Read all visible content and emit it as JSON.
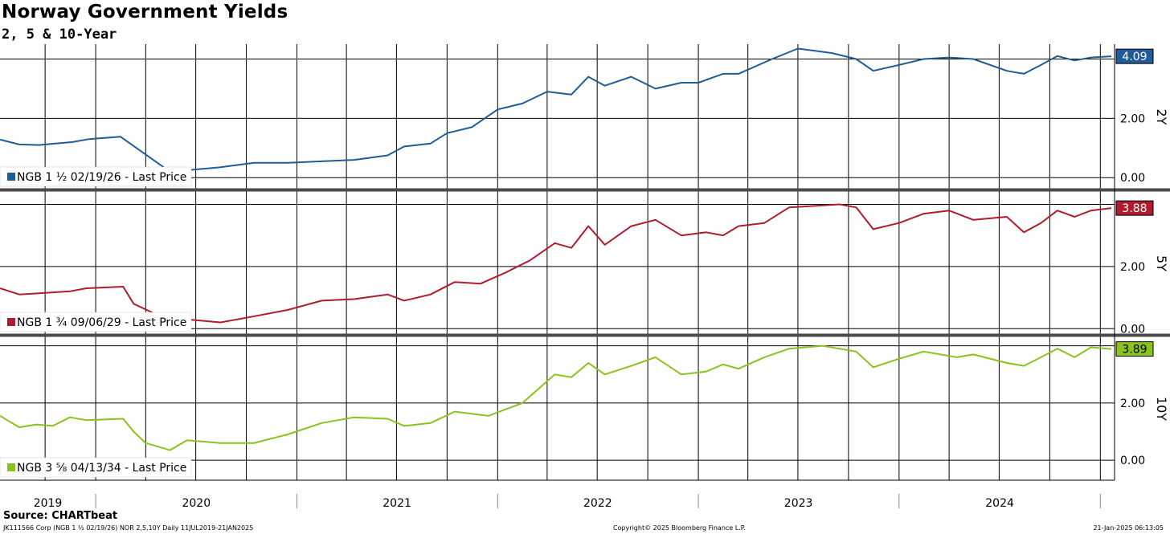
{
  "header": {
    "title": "Norway Government Yields",
    "subtitle": "2, 5 & 10-Year"
  },
  "footer": {
    "source": "Source: CHARTbeat",
    "left": "JK111566 Corp (NGB 1 ½ 02/19/26) NOR 2,5,10Y  Daily 11JUL2019-21JAN2025",
    "center": "Copyright© 2025 Bloomberg Finance L.P.",
    "right": "21-Jan-2025 06:13:05"
  },
  "chart_data": {
    "type": "line",
    "x_range": [
      "2019-07-11",
      "2025-01-21"
    ],
    "x_ticks": [
      "2019",
      "2020",
      "2021",
      "2022",
      "2023",
      "2024"
    ],
    "grid": true,
    "legend_position": "bottom-left of each panel",
    "panels": [
      {
        "axis_label": "2Y",
        "legend": "NGB 1 ½ 02/19/26 - Last Price",
        "last_value": "4.09",
        "color": "#1f5c99",
        "ylim": [
          -0.4,
          4.5
        ],
        "y_ticks": [
          "0.00",
          "2.00"
        ],
        "points": [
          [
            "2019-07-11",
            1.28
          ],
          [
            "2019-08-15",
            1.12
          ],
          [
            "2019-09-20",
            1.1
          ],
          [
            "2019-10-20",
            1.15
          ],
          [
            "2019-11-20",
            1.2
          ],
          [
            "2019-12-20",
            1.3
          ],
          [
            "2020-02-15",
            1.38
          ],
          [
            "2020-05-15",
            0.2
          ],
          [
            "2020-06-15",
            0.25
          ],
          [
            "2020-08-15",
            0.35
          ],
          [
            "2020-10-15",
            0.5
          ],
          [
            "2020-12-15",
            0.5
          ],
          [
            "2021-02-15",
            0.55
          ],
          [
            "2021-04-15",
            0.6
          ],
          [
            "2021-06-15",
            0.75
          ],
          [
            "2021-07-15",
            1.05
          ],
          [
            "2021-09-01",
            1.15
          ],
          [
            "2021-10-01",
            1.5
          ],
          [
            "2021-11-15",
            1.7
          ],
          [
            "2022-01-01",
            2.3
          ],
          [
            "2022-02-15",
            2.5
          ],
          [
            "2022-04-01",
            2.9
          ],
          [
            "2022-05-15",
            2.8
          ],
          [
            "2022-06-15",
            3.4
          ],
          [
            "2022-07-15",
            3.1
          ],
          [
            "2022-09-01",
            3.4
          ],
          [
            "2022-10-15",
            3.0
          ],
          [
            "2022-12-01",
            3.2
          ],
          [
            "2023-01-01",
            3.2
          ],
          [
            "2023-02-15",
            3.5
          ],
          [
            "2023-03-15",
            3.5
          ],
          [
            "2023-05-15",
            4.0
          ],
          [
            "2023-07-01",
            4.35
          ],
          [
            "2023-09-01",
            4.2
          ],
          [
            "2023-10-15",
            4.0
          ],
          [
            "2023-11-15",
            3.6
          ],
          [
            "2024-01-01",
            3.8
          ],
          [
            "2024-02-15",
            4.0
          ],
          [
            "2024-04-01",
            4.05
          ],
          [
            "2024-05-15",
            4.0
          ],
          [
            "2024-07-15",
            3.6
          ],
          [
            "2024-08-15",
            3.5
          ],
          [
            "2024-09-15",
            3.8
          ],
          [
            "2024-10-15",
            4.1
          ],
          [
            "2024-11-15",
            3.95
          ],
          [
            "2024-12-15",
            4.05
          ],
          [
            "2025-01-21",
            4.09
          ]
        ]
      },
      {
        "axis_label": "5Y",
        "legend": "NGB 1 ¾ 09/06/29 - Last Price",
        "last_value": "3.88",
        "color": "#b01c2e",
        "ylim": [
          -0.2,
          4.4
        ],
        "y_ticks": [
          "0.00",
          "2.00"
        ],
        "points": [
          [
            "2019-07-11",
            1.3
          ],
          [
            "2019-08-15",
            1.1
          ],
          [
            "2019-10-01",
            1.15
          ],
          [
            "2019-11-15",
            1.2
          ],
          [
            "2019-12-15",
            1.3
          ],
          [
            "2020-02-20",
            1.35
          ],
          [
            "2020-03-10",
            0.8
          ],
          [
            "2020-04-15",
            0.5
          ],
          [
            "2020-05-15",
            0.15
          ],
          [
            "2020-06-15",
            0.3
          ],
          [
            "2020-08-15",
            0.2
          ],
          [
            "2020-10-01",
            0.35
          ],
          [
            "2020-12-15",
            0.6
          ],
          [
            "2021-02-15",
            0.9
          ],
          [
            "2021-04-15",
            0.95
          ],
          [
            "2021-06-15",
            1.1
          ],
          [
            "2021-07-15",
            0.9
          ],
          [
            "2021-09-01",
            1.1
          ],
          [
            "2021-10-15",
            1.5
          ],
          [
            "2021-12-01",
            1.45
          ],
          [
            "2022-01-15",
            1.8
          ],
          [
            "2022-03-01",
            2.2
          ],
          [
            "2022-04-15",
            2.75
          ],
          [
            "2022-05-15",
            2.6
          ],
          [
            "2022-06-15",
            3.3
          ],
          [
            "2022-07-15",
            2.7
          ],
          [
            "2022-09-01",
            3.3
          ],
          [
            "2022-10-15",
            3.5
          ],
          [
            "2022-12-01",
            3.0
          ],
          [
            "2023-01-15",
            3.1
          ],
          [
            "2023-02-15",
            3.0
          ],
          [
            "2023-03-15",
            3.3
          ],
          [
            "2023-05-01",
            3.4
          ],
          [
            "2023-06-15",
            3.9
          ],
          [
            "2023-08-01",
            3.95
          ],
          [
            "2023-09-15",
            4.0
          ],
          [
            "2023-10-15",
            3.9
          ],
          [
            "2023-11-15",
            3.2
          ],
          [
            "2024-01-01",
            3.4
          ],
          [
            "2024-02-15",
            3.7
          ],
          [
            "2024-04-01",
            3.8
          ],
          [
            "2024-05-15",
            3.5
          ],
          [
            "2024-07-15",
            3.6
          ],
          [
            "2024-08-15",
            3.1
          ],
          [
            "2024-09-15",
            3.4
          ],
          [
            "2024-10-15",
            3.8
          ],
          [
            "2024-11-15",
            3.6
          ],
          [
            "2024-12-15",
            3.8
          ],
          [
            "2025-01-21",
            3.88
          ]
        ]
      },
      {
        "axis_label": "10Y",
        "legend": "NGB 3 ⅝ 04/13/34 - Last Price",
        "last_value": "3.89",
        "color": "#8cc21e",
        "ylim": [
          -0.7,
          4.3
        ],
        "y_ticks": [
          "0.00",
          "2.00"
        ],
        "points": [
          [
            "2019-07-11",
            1.55
          ],
          [
            "2019-08-15",
            1.15
          ],
          [
            "2019-09-15",
            1.25
          ],
          [
            "2019-10-15",
            1.2
          ],
          [
            "2019-11-15",
            1.5
          ],
          [
            "2019-12-15",
            1.4
          ],
          [
            "2020-02-20",
            1.45
          ],
          [
            "2020-03-10",
            1.0
          ],
          [
            "2020-04-01",
            0.6
          ],
          [
            "2020-05-15",
            0.35
          ],
          [
            "2020-06-15",
            0.7
          ],
          [
            "2020-08-15",
            0.6
          ],
          [
            "2020-10-15",
            0.6
          ],
          [
            "2020-12-15",
            0.9
          ],
          [
            "2021-02-15",
            1.3
          ],
          [
            "2021-04-15",
            1.5
          ],
          [
            "2021-06-15",
            1.45
          ],
          [
            "2021-07-15",
            1.2
          ],
          [
            "2021-09-01",
            1.3
          ],
          [
            "2021-10-15",
            1.7
          ],
          [
            "2021-12-15",
            1.55
          ],
          [
            "2022-02-15",
            2.0
          ],
          [
            "2022-04-15",
            3.0
          ],
          [
            "2022-05-15",
            2.9
          ],
          [
            "2022-06-15",
            3.4
          ],
          [
            "2022-07-15",
            3.0
          ],
          [
            "2022-09-01",
            3.3
          ],
          [
            "2022-10-15",
            3.6
          ],
          [
            "2022-12-01",
            3.0
          ],
          [
            "2023-01-15",
            3.1
          ],
          [
            "2023-02-15",
            3.35
          ],
          [
            "2023-03-15",
            3.2
          ],
          [
            "2023-05-01",
            3.6
          ],
          [
            "2023-06-15",
            3.9
          ],
          [
            "2023-08-15",
            4.0
          ],
          [
            "2023-10-15",
            3.8
          ],
          [
            "2023-11-15",
            3.25
          ],
          [
            "2024-01-01",
            3.55
          ],
          [
            "2024-02-15",
            3.8
          ],
          [
            "2024-04-15",
            3.6
          ],
          [
            "2024-05-15",
            3.7
          ],
          [
            "2024-07-15",
            3.4
          ],
          [
            "2024-08-15",
            3.3
          ],
          [
            "2024-09-15",
            3.6
          ],
          [
            "2024-10-15",
            3.9
          ],
          [
            "2024-11-15",
            3.6
          ],
          [
            "2024-12-15",
            3.95
          ],
          [
            "2025-01-21",
            3.89
          ]
        ]
      }
    ]
  }
}
